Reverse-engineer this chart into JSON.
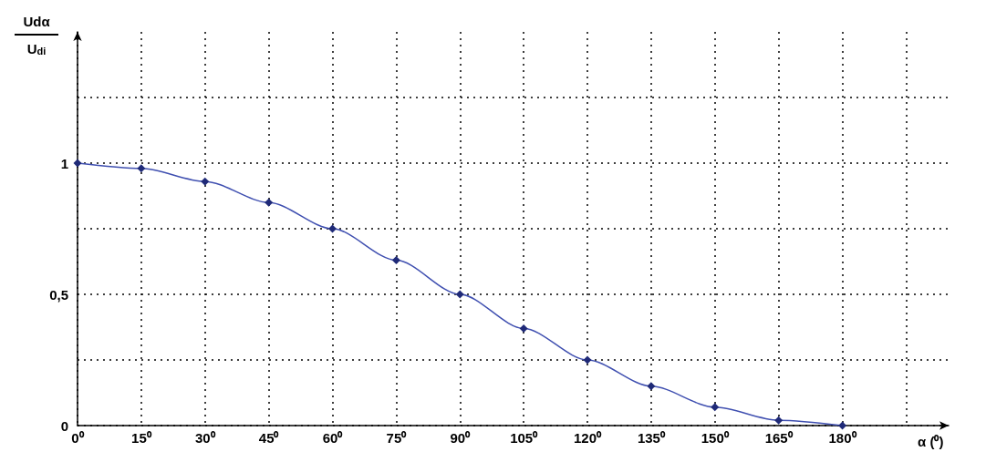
{
  "chart_data": {
    "type": "line",
    "ylabel": "Udα\nU$_{di}$",
    "xlabel": "α (⁰)",
    "x": [
      0,
      15,
      30,
      45,
      60,
      75,
      90,
      105,
      120,
      135,
      150,
      165,
      180
    ],
    "series": [
      {
        "color": "#3f4fb0",
        "values": [
          1,
          0.98,
          0.93,
          0.85,
          0.75,
          0.63,
          0.5,
          0.37,
          0.25,
          0.15,
          0.07,
          0.02,
          0
        ]
      }
    ],
    "xlim": [
      0,
      205
    ],
    "xticks": [
      {
        "value": 0,
        "label": "0⁰"
      },
      {
        "value": 15,
        "label": "15⁰"
      },
      {
        "value": 30,
        "label": "30⁰"
      },
      {
        "value": 45,
        "label": "45⁰"
      },
      {
        "value": 60,
        "label": "60⁰"
      },
      {
        "value": 75,
        "label": "75⁰"
      },
      {
        "value": 90,
        "label": "90⁰"
      },
      {
        "value": 105,
        "label": "105⁰"
      },
      {
        "value": 120,
        "label": "120⁰"
      },
      {
        "value": 135,
        "label": "135⁰"
      },
      {
        "value": 150,
        "label": "150⁰"
      },
      {
        "value": 165,
        "label": "165⁰"
      },
      {
        "value": 180,
        "label": "180⁰"
      },
      {
        "value": 195,
        "label": null
      }
    ],
    "ylim": [
      0,
      1.5
    ],
    "yticks": [
      0,
      {
        "value": 0.25,
        "label": null
      },
      {
        "value": 0.5,
        "label": "0,5"
      },
      {
        "value": 0.75,
        "label": null
      },
      1,
      {
        "value": 1.25,
        "label": null
      }
    ],
    "grid": true,
    "marker": "diamond",
    "line_style": "solid"
  }
}
